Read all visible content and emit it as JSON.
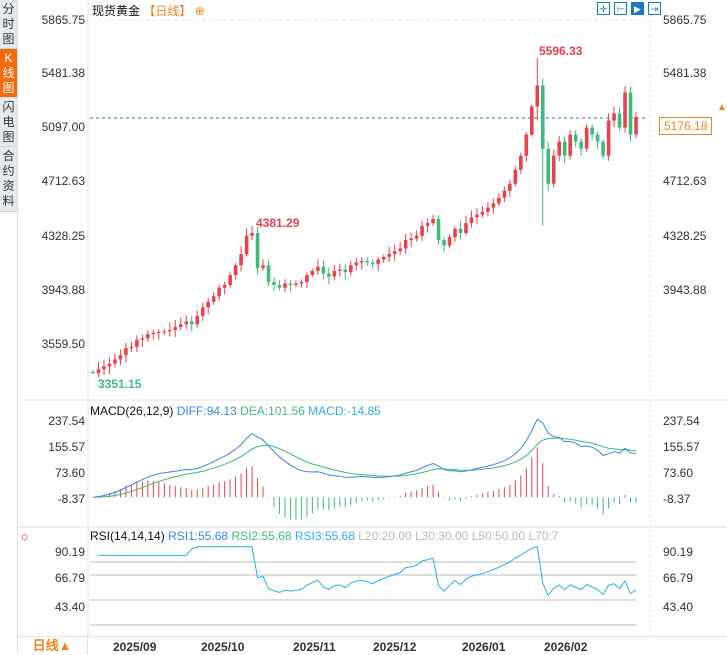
{
  "sidebar": {
    "tabs": [
      "分时图",
      "K线图",
      "闪电图",
      "合约资料"
    ],
    "active": 1
  },
  "header": {
    "title": "现货黄金",
    "period_tag": "【日线】",
    "add_icon": "plus-circle-icon"
  },
  "toolbar": {
    "icons": [
      "crosshair-icon",
      "range-icon",
      "play-icon",
      "jump-end-icon"
    ]
  },
  "price_axis": {
    "labels": [
      "5865.75",
      "5481.38",
      "5097.00",
      "4712.63",
      "4328.25",
      "3943.88",
      "3559.50"
    ],
    "current": "5176.18"
  },
  "annotations": {
    "high1": "4381.29",
    "high2": "5596.33",
    "low": "3351.15"
  },
  "macd": {
    "title": "MACD(26,12,9)",
    "diff": "DIFF:94.13",
    "dea": "DEA:101.56",
    "macd": "MACD:-14.85",
    "axis": [
      "237.54",
      "155.57",
      "73.60",
      "-8.37"
    ]
  },
  "rsi": {
    "title": "RSI(14,14,14)",
    "rsi1": "RSI1:55.68",
    "rsi2": "RSI2:55.68",
    "rsi3": "RSI3:55.68",
    "l20": "L20:20.00",
    "l30": "L30:30.00",
    "l50": "L50:50.00",
    "l70": "L70:7",
    "axis": [
      "90.19",
      "66.79",
      "43.40"
    ]
  },
  "bottom": {
    "period": "日线▲",
    "dates": [
      "2025/09",
      "2025/10",
      "2025/11",
      "2025/12",
      "2026/01",
      "2026/02"
    ]
  },
  "colors": {
    "up": "#e8424f",
    "down": "#3dbb7c",
    "diff": "#3a86f0",
    "dea": "#3dbb7c",
    "rsi": "#2db0e8",
    "accent": "#f58220"
  },
  "chart_data": {
    "type": "candlestick",
    "closes": [
      3351,
      3380,
      3400,
      3420,
      3450,
      3480,
      3530,
      3540,
      3590,
      3600,
      3630,
      3640,
      3645,
      3650,
      3660,
      3680,
      3700,
      3720,
      3700,
      3760,
      3820,
      3860,
      3900,
      3960,
      3980,
      4050,
      4120,
      4200,
      4330,
      4350,
      4100,
      4120,
      4000,
      3980,
      3960,
      3990,
      3980,
      3990,
      4000,
      4050,
      4080,
      4110,
      4060,
      4040,
      4080,
      4090,
      4070,
      4120,
      4140,
      4150,
      4140,
      4130,
      4160,
      4180,
      4200,
      4220,
      4240,
      4300,
      4310,
      4330,
      4400,
      4420,
      4450,
      4300,
      4260,
      4320,
      4380,
      4350,
      4420,
      4460,
      4480,
      4500,
      4530,
      4560,
      4600,
      4650,
      4700,
      4800,
      4900,
      5050,
      5250,
      5400,
      4950,
      4700,
      4900,
      5000,
      4900,
      5050,
      5000,
      4950,
      5100,
      5050,
      5000,
      4900,
      5150,
      5200,
      5100,
      5350,
      5050,
      5176
    ],
    "high_points": [
      4381.29,
      5596.33
    ],
    "low_point": 3351.15,
    "ylim": [
      3351.15,
      5865.75
    ]
  }
}
